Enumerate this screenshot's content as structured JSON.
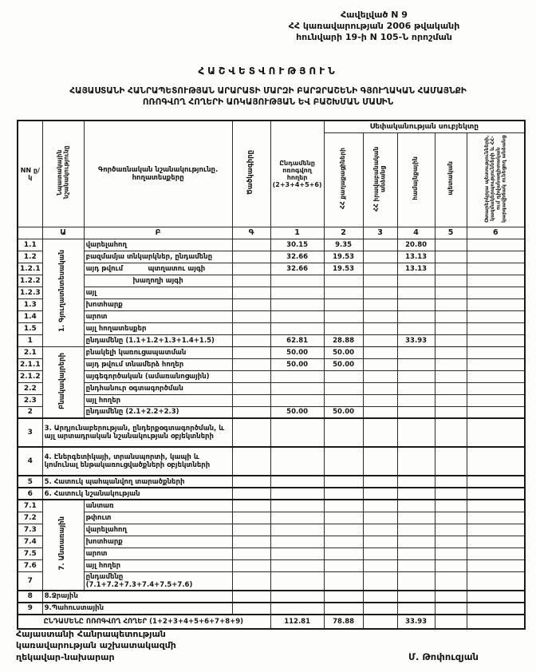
{
  "appendix": {
    "line1": "Հավելված N 9",
    "line2": "ՀՀ կառավարության 2006 թվականի",
    "line3": "հունվարի 19-ի N 105-Ն որոշման"
  },
  "title": {
    "main": "ՀԱՇՎԵՏՎՈՒԹՅՈՒՆ",
    "sub1": "ՀԱՅԱՍՏԱՆԻ ՀԱՆՐԱՊԵՏՈՒԹՅԱՆ ԱՐԱՐԱՏԻ ՄԱՐԶԻ ԲԱՐՁՐԱՇԵՆԻ ԳՅՈՒՂԱԿԱՆ ՀԱՄԱՅՆՔԻ",
    "sub2": "ՈՌՈԳՎՈՂ ՀՈՂԵՐԻ ԱՌԿԱՅՈՒԹՅԱՆ ԵՎ ԲԱՇԽՄԱՆ ՄԱՍԻՆ"
  },
  "table": {
    "header": {
      "col_nn": "NN ը/կ",
      "col_purpose": "Նպատակային նշանակությունը",
      "col_functional": "Գործառնական նշանակությունը. հողատեսքերը",
      "col_code": "Ծածկագիրը",
      "col_total": "Ընդամենը ոռոգվող հողեր (2+3+4+5+6)",
      "ownership_title": "Սեփականության սուբյեկտը",
      "col_citizens": "ՀՀ քաղաքացիների",
      "col_legal": "ՀՀ իրավաբանական անձանց",
      "col_communal": "համայնքային",
      "col_state": "պետական",
      "col_foreign": "Օտարերկրյա պետությունների, կազմակերպությունների և ՀՀ-ում դիվանագիտական կարգավիճակ ունեցող անձանց",
      "letters": [
        "",
        "Ա",
        "Բ",
        "Գ",
        "1",
        "2",
        "3",
        "4",
        "5",
        "6"
      ]
    },
    "rows": [
      {
        "num": "1.1",
        "label": "վարելահող",
        "values": [
          "30.15",
          "9.35",
          "",
          "20.80",
          "",
          ""
        ],
        "group": {
          "label": "1. Գյուղատնտեսական",
          "span": 9
        }
      },
      {
        "num": "1.2",
        "label": "բազմամյա տնկարկներ, ընդամենը",
        "values": [
          "32.66",
          "19.53",
          "",
          "13.13",
          "",
          ""
        ]
      },
      {
        "num": "1.2.1",
        "label_left": "այդ թվում",
        "label": "պտղատու այգի",
        "split": true,
        "values": [
          "32.66",
          "19.53",
          "",
          "13.13",
          "",
          ""
        ]
      },
      {
        "num": "1.2.2",
        "label": "խաղողի այգի",
        "center": true,
        "values": [
          "",
          "",
          "",
          "",
          "",
          ""
        ]
      },
      {
        "num": "1.2.3",
        "label": "այլ",
        "values": [
          "",
          "",
          "",
          "",
          "",
          ""
        ]
      },
      {
        "num": "1.3",
        "label": "խոտհարք",
        "values": [
          "",
          "",
          "",
          "",
          "",
          ""
        ]
      },
      {
        "num": "1.4",
        "label": "արոտ",
        "values": [
          "",
          "",
          "",
          "",
          "",
          ""
        ]
      },
      {
        "num": "1.5",
        "label": "այլ հողատեսքեր",
        "values": [
          "",
          "",
          "",
          "",
          "",
          ""
        ]
      },
      {
        "num": "1",
        "label": "ընդամենը (1.1+1.2+1.3+1.4+1.5)",
        "total": true,
        "values": [
          "62.81",
          "28.88",
          "",
          "33.93",
          "",
          ""
        ]
      },
      {
        "num": "2.1",
        "label": "բնակելի կառուցապատման",
        "values": [
          "50.00",
          "50.00",
          "",
          "",
          "",
          ""
        ],
        "group": {
          "label": "Բնակավայրերի",
          "span": 6
        }
      },
      {
        "num": "2.1.1",
        "label": "այդ թվում տնամերձ հողեր",
        "values": [
          "50.00",
          "50.00",
          "",
          "",
          "",
          ""
        ]
      },
      {
        "num": "2.1.2",
        "label": "այգեգործական (ամառանոցային)",
        "values": [
          "",
          "",
          "",
          "",
          "",
          ""
        ]
      },
      {
        "num": "2.2",
        "label": "ընդհանուր օգտագործման",
        "values": [
          "",
          "",
          "",
          "",
          "",
          ""
        ]
      },
      {
        "num": "2.3",
        "label": "այլ հողեր",
        "values": [
          "",
          "",
          "",
          "",
          "",
          ""
        ]
      },
      {
        "num": "2",
        "label": "ընդամենը (2.1+2.2+2.3)",
        "total": true,
        "values": [
          "50.00",
          "50.00",
          "",
          "",
          "",
          ""
        ]
      },
      {
        "num": "3",
        "label": "3. Արդյունաբերության, ընդերքօգտագործման, և այլ արտադրական նշանակության օբյեկտների",
        "wide": true,
        "tall": true,
        "section": true,
        "values": [
          "",
          "",
          "",
          "",
          "",
          ""
        ]
      },
      {
        "num": "4",
        "label": "4. Էներգետիկայի, տրանսպորտի, կապի և կոմունալ ենթակառուցվածքների օբյեկտների",
        "wide": true,
        "tall": true,
        "section": true,
        "values": [
          "",
          "",
          "",
          "",
          "",
          ""
        ]
      },
      {
        "num": "5",
        "label": "5. Հատուկ պահպանվող տարածքների",
        "wide": true,
        "section": true,
        "values": [
          "",
          "",
          "",
          "",
          "",
          ""
        ]
      },
      {
        "num": "6",
        "label": "6. Հատուկ նշանակության",
        "wide": true,
        "section": true,
        "values": [
          "",
          "",
          "",
          "",
          "",
          ""
        ]
      },
      {
        "num": "7.1",
        "label": "անտառ",
        "section": true,
        "values": [
          "",
          "",
          "",
          "",
          "",
          ""
        ],
        "group": {
          "label": "7. Անտառային",
          "span": 7
        }
      },
      {
        "num": "7.2",
        "label": "թփուտ",
        "values": [
          "",
          "",
          "",
          "",
          "",
          ""
        ]
      },
      {
        "num": "7.3",
        "label": "վարելահող",
        "values": [
          "",
          "",
          "",
          "",
          "",
          ""
        ]
      },
      {
        "num": "7.4",
        "label": "խոտհարք",
        "values": [
          "",
          "",
          "",
          "",
          "",
          ""
        ]
      },
      {
        "num": "7.5",
        "label": "արոտ",
        "values": [
          "",
          "",
          "",
          "",
          "",
          ""
        ]
      },
      {
        "num": "7.6",
        "label": "այլ հողեր",
        "values": [
          "",
          "",
          "",
          "",
          "",
          ""
        ]
      },
      {
        "num": "7",
        "label": "ընդամենը (7.1+7.2+7.3+7.4+7.5+7.6)",
        "total": true,
        "values": [
          "",
          "",
          "",
          "",
          "",
          ""
        ]
      },
      {
        "num": "8",
        "label": "8.Ջրային",
        "wide": true,
        "section": true,
        "values": [
          "",
          "",
          "",
          "",
          "",
          ""
        ]
      },
      {
        "num": "9",
        "label": "9.Պահուստային",
        "wide": true,
        "section": true,
        "values": [
          "",
          "",
          "",
          "",
          "",
          ""
        ]
      },
      {
        "num": "",
        "label": "ԸՆԴԱՄԵՆԸ ՈՌՈԳՎՈՂ ՀՈՂԵՐ (1+2+3+4+5+6+7+8+9)",
        "grand": true,
        "values": [
          "112.81",
          "78.88",
          "",
          "33.93",
          "",
          ""
        ]
      }
    ]
  },
  "footer": {
    "left1": "Հայաստանի Հանրապետության",
    "left2": "կառավարության աշխատակազմի",
    "left3": "ղեկավար-նախարար",
    "signature": "Մ. Թոփուզյան"
  }
}
